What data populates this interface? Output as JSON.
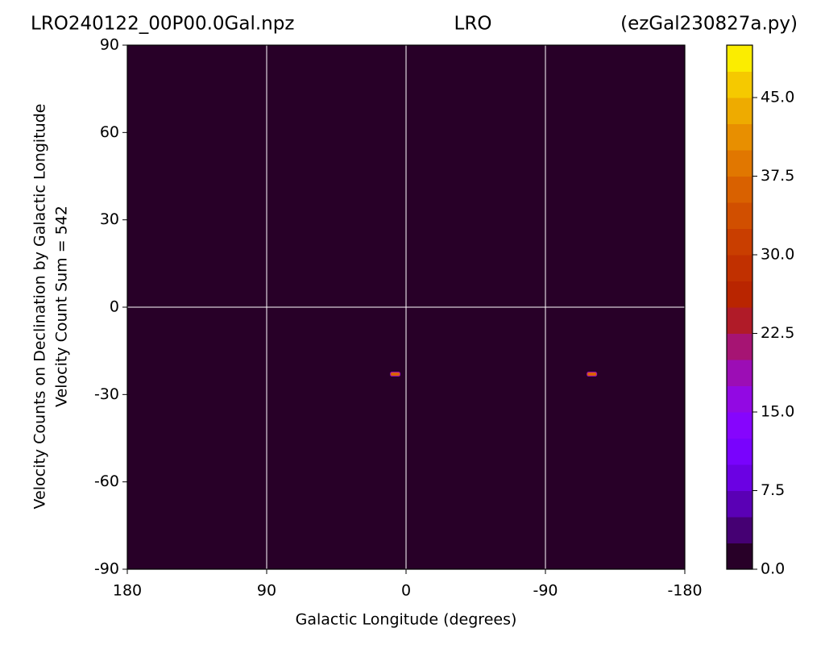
{
  "chart_data": {
    "type": "heatmap",
    "title_left": "LRO240122_00P00.0Gal.npz",
    "title_center": "LRO",
    "title_right": "(ezGal230827a.py)",
    "xlabel": "Galactic Longitude (degrees)",
    "ylabel": "Velocity Counts on Declination by Galactic Longitude",
    "ylabel2": "Velocity Count Sum = 542",
    "xlim": [
      180,
      -180
    ],
    "ylim": [
      -90,
      90
    ],
    "xticks": [
      180,
      90,
      0,
      -90,
      -180
    ],
    "yticks": [
      -90,
      -60,
      -30,
      0,
      30,
      60,
      90
    ],
    "reference_lines": {
      "x": [
        90,
        0,
        -90
      ],
      "y": [
        0
      ],
      "color": "#ffffff"
    },
    "spots": [
      {
        "x": 7,
        "y": -23,
        "value": 37
      },
      {
        "x": -120,
        "y": -23,
        "value": 37
      }
    ],
    "colorbar": {
      "lim": [
        0,
        50
      ],
      "ticks": [
        {
          "value": 0,
          "label": "0.0"
        },
        7.5,
        {
          "value": 15,
          "label": "15.0"
        },
        22.5,
        {
          "value": 30,
          "label": "30.0"
        },
        37.5,
        {
          "value": 45,
          "label": "45.0"
        }
      ],
      "colors": [
        "#280028",
        "#450073",
        "#5a00b5",
        "#6b01e3",
        "#7903fd",
        "#8605fd",
        "#9209e3",
        "#9c0db5",
        "#a61473",
        "#b01b28",
        "#b92500",
        "#c13000",
        "#c93e00",
        "#d14f00",
        "#d96100",
        "#e17700",
        "#e88f00",
        "#eeab00",
        "#f5c900",
        "#fbed00"
      ]
    }
  }
}
